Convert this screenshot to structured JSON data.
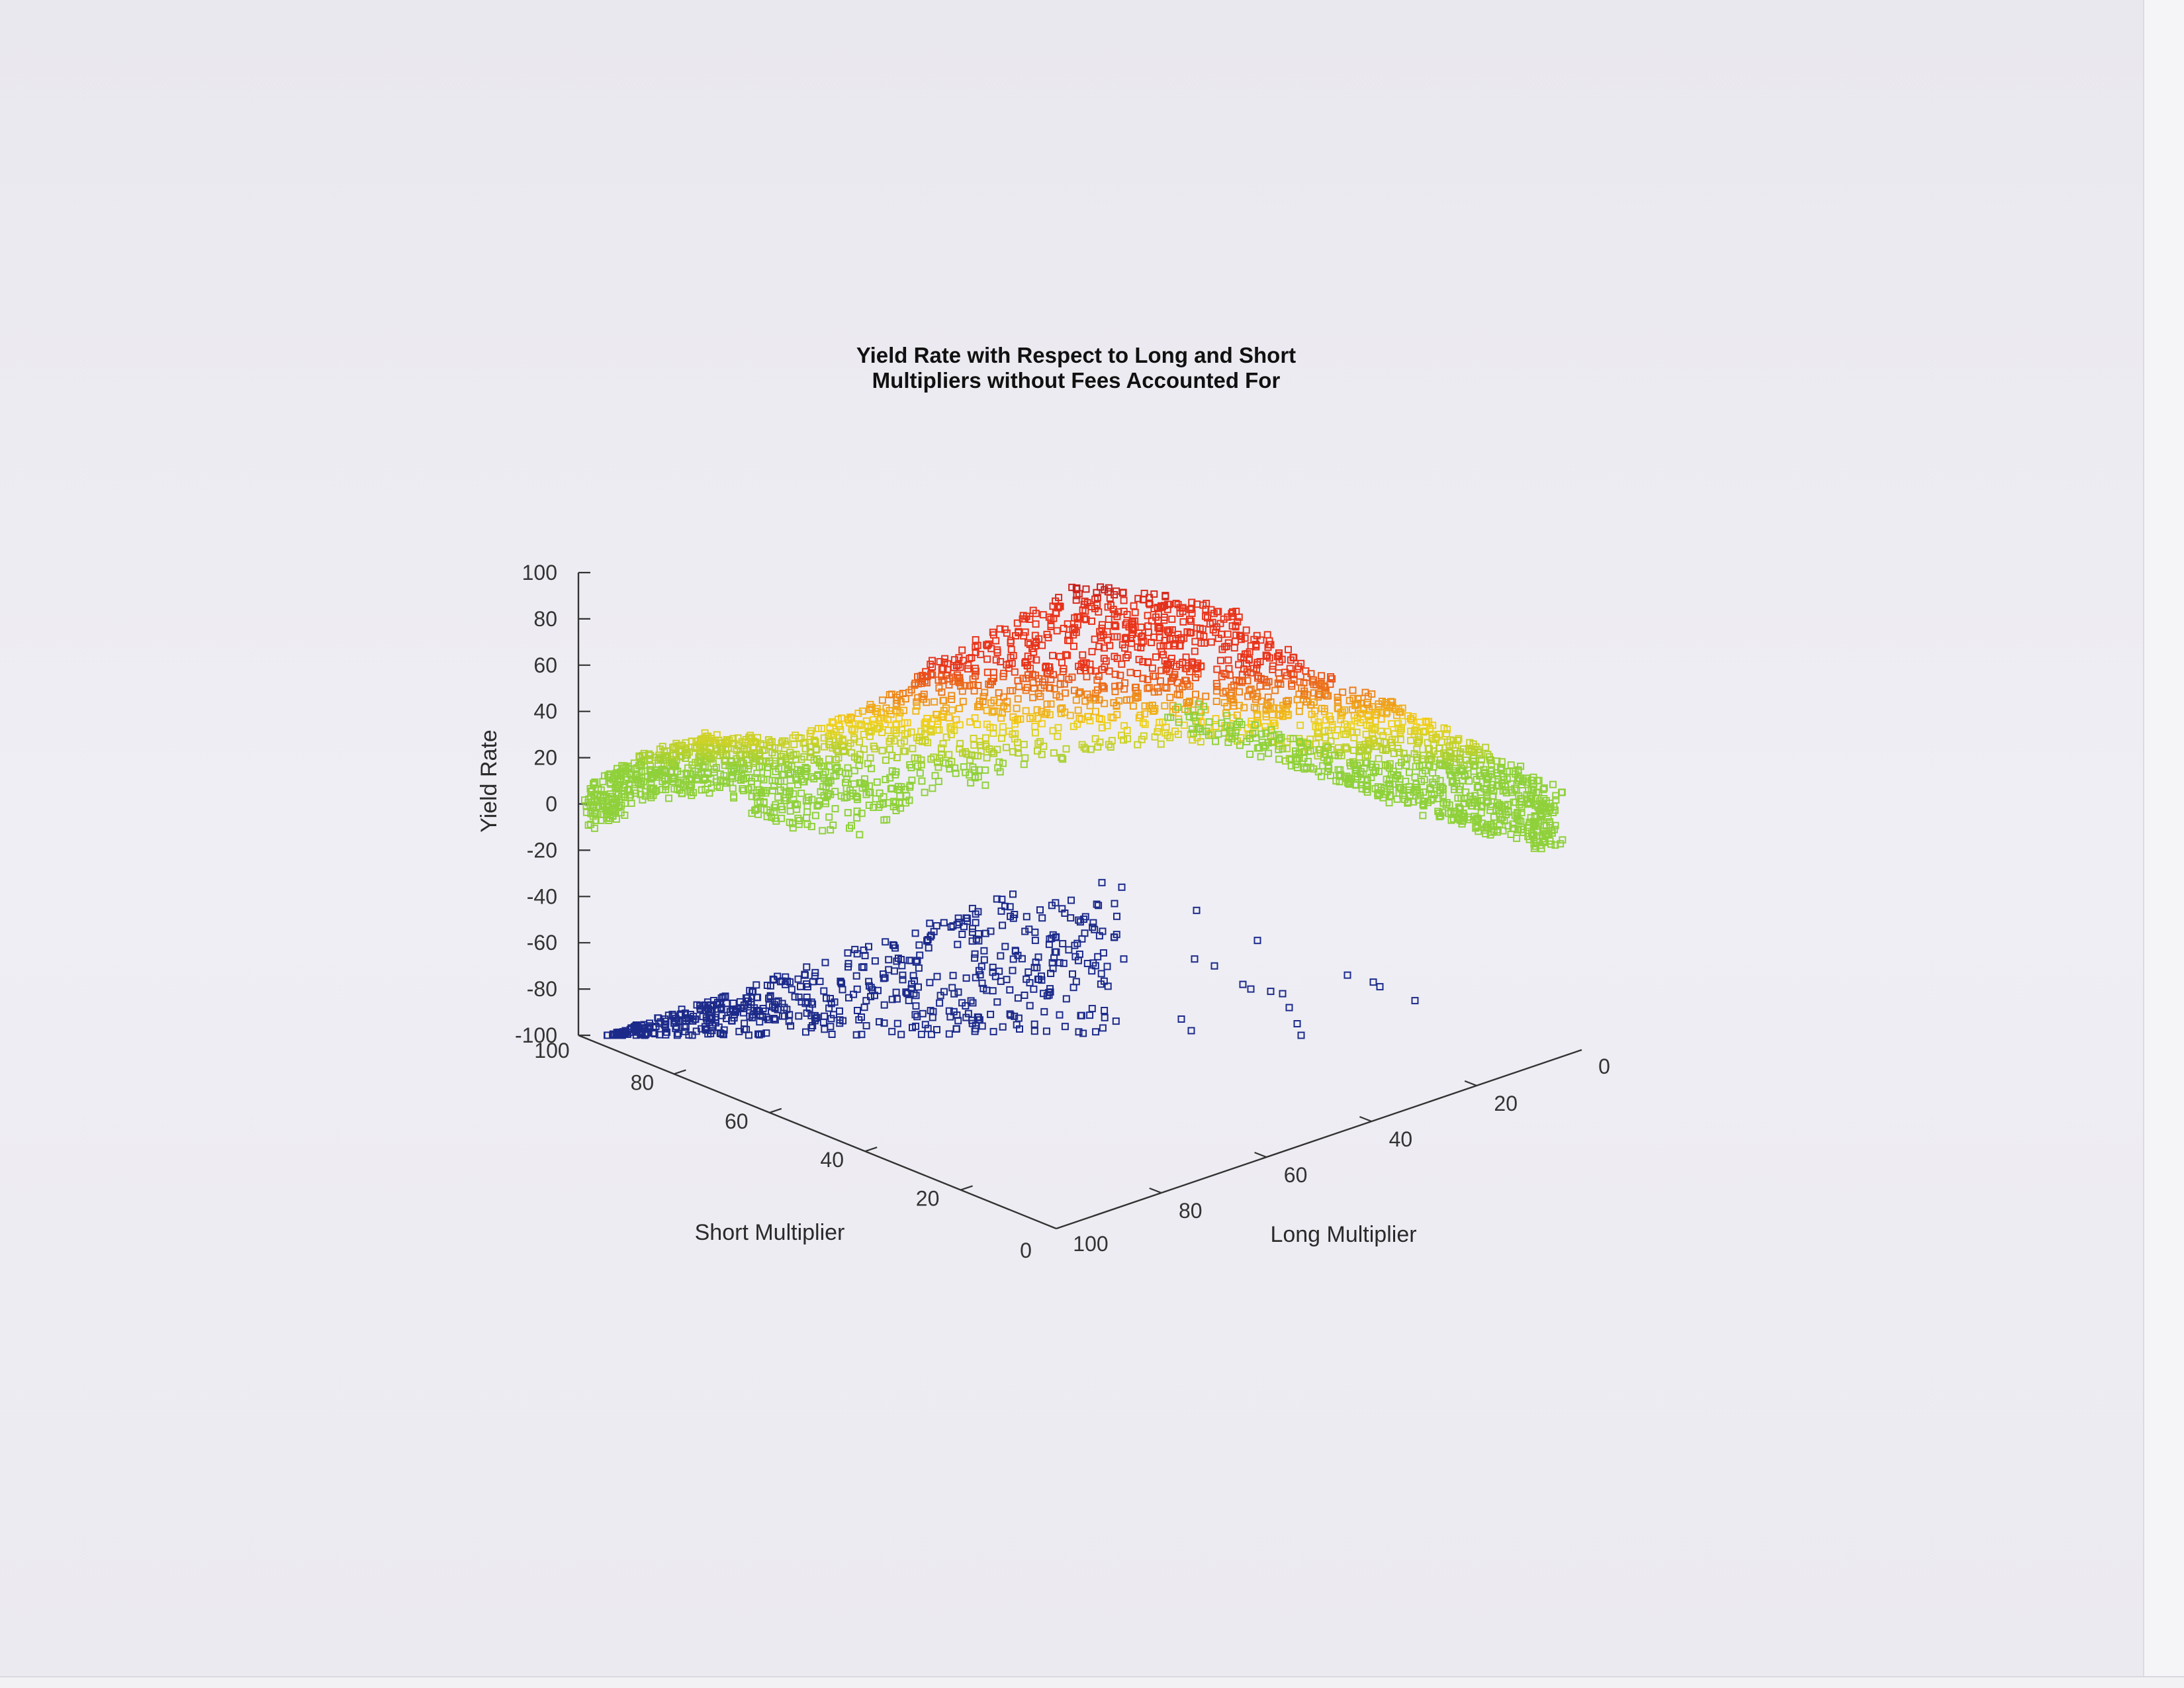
{
  "chart_data": {
    "type": "scatter3d",
    "title": [
      "Yield Rate with Respect to Long and Short",
      "Multipliers without Fees Accounted For"
    ],
    "xlabel": "Long Multiplier",
    "ylabel": "Short Multiplier",
    "zlabel": "Yield Rate",
    "x_ticks": [
      0,
      20,
      40,
      60,
      80,
      100
    ],
    "y_ticks": [
      0,
      20,
      40,
      60,
      80,
      100
    ],
    "z_ticks": [
      -100,
      -80,
      -60,
      -40,
      -20,
      0,
      20,
      40,
      60,
      80,
      100
    ],
    "xlim": [
      0,
      100
    ],
    "ylim": [
      0,
      100
    ],
    "zlim": [
      -100,
      100
    ],
    "colormap": {
      "low": "#8fd13a",
      "mid": "#f2d21c",
      "high": "#e8341b",
      "top": "#b0111a",
      "negative": "#1c2a8a"
    },
    "marker": "square-open",
    "grid": false,
    "legend": "none",
    "surface_ridge": [
      {
        "a": 0.0,
        "z_bottom": -12,
        "z_top": 8
      },
      {
        "a": 0.06,
        "z_bottom": 2,
        "z_top": 22
      },
      {
        "a": 0.12,
        "z_bottom": 5,
        "z_top": 30
      },
      {
        "a": 0.2,
        "z_bottom": -10,
        "z_top": 28
      },
      {
        "a": 0.28,
        "z_bottom": -15,
        "z_top": 40
      },
      {
        "a": 0.35,
        "z_bottom": 5,
        "z_top": 60
      },
      {
        "a": 0.42,
        "z_bottom": 10,
        "z_top": 75
      },
      {
        "a": 0.5,
        "z_bottom": 20,
        "z_top": 95
      },
      {
        "a": 0.58,
        "z_bottom": 25,
        "z_top": 92
      },
      {
        "a": 0.66,
        "z_bottom": 28,
        "z_top": 85
      },
      {
        "a": 0.74,
        "z_bottom": 15,
        "z_top": 60
      },
      {
        "a": 0.82,
        "z_bottom": 0,
        "z_top": 45
      },
      {
        "a": 0.9,
        "z_bottom": -10,
        "z_top": 30
      },
      {
        "a": 1.0,
        "z_bottom": -20,
        "z_top": 5
      }
    ],
    "negative_region": {
      "z_range": [
        -100,
        -35
      ],
      "extent": "short 55-100 x long 65-100, plus sparse points at long 5-55"
    }
  }
}
